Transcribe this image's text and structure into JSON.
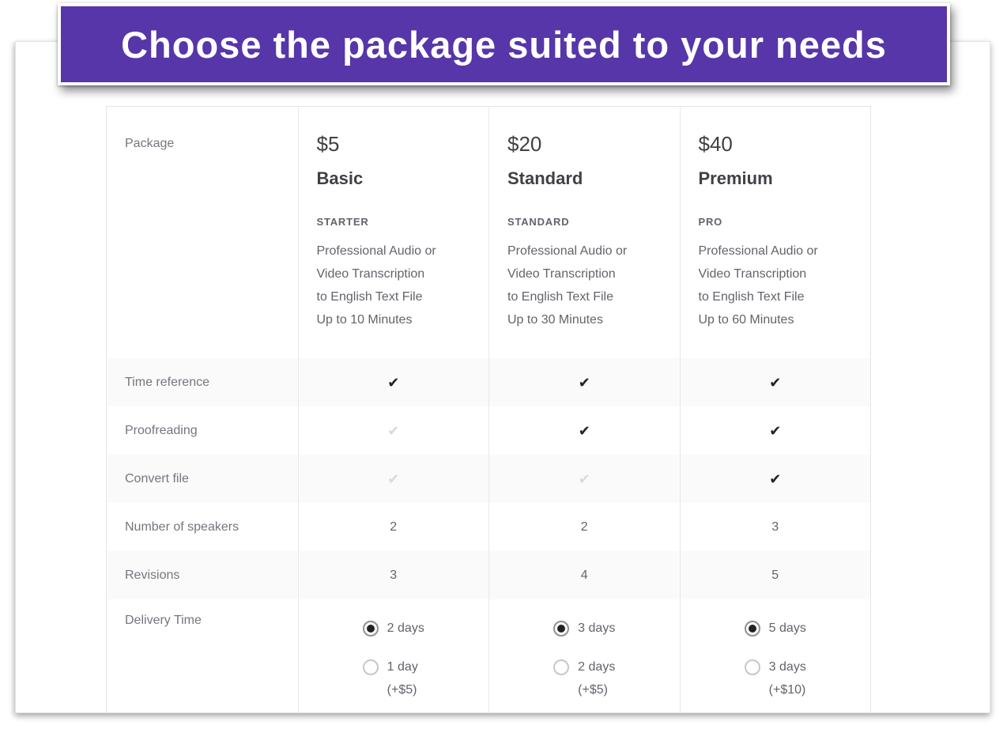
{
  "banner": {
    "title": "Choose the package suited to your needs",
    "background_color": "#5636a8",
    "text_color": "#ffffff"
  },
  "colors": {
    "check_included": "#222325",
    "check_excluded": "#d9dadd",
    "row_stripe": "#fafafa",
    "table_border": "#e4e5e7",
    "label_text": "#74767e",
    "value_text": "#62646a",
    "heading_text": "#404145"
  },
  "table": {
    "corner_label": "Package",
    "packages": [
      {
        "price": "$5",
        "name": "Basic",
        "tier": "STARTER",
        "description_lines": [
          "Professional Audio or",
          "Video Transcription",
          "to English Text File",
          "Up to 10 Minutes"
        ]
      },
      {
        "price": "$20",
        "name": "Standard",
        "tier": "STANDARD",
        "description_lines": [
          "Professional Audio or",
          "Video Transcription",
          "to English Text File",
          "Up to 30 Minutes"
        ]
      },
      {
        "price": "$40",
        "name": "Premium",
        "tier": "PRO",
        "description_lines": [
          "Professional Audio or",
          "Video Transcription",
          "to English Text File",
          "Up to 60 Minutes"
        ]
      }
    ],
    "feature_rows": [
      {
        "label": "Time reference",
        "type": "check",
        "included": [
          true,
          true,
          true
        ]
      },
      {
        "label": "Proofreading",
        "type": "check",
        "included": [
          false,
          true,
          true
        ]
      },
      {
        "label": "Convert file",
        "type": "check",
        "included": [
          false,
          false,
          true
        ]
      },
      {
        "label": "Number of speakers",
        "type": "values",
        "values": [
          "2",
          "2",
          "3"
        ]
      },
      {
        "label": "Revisions",
        "type": "values",
        "values": [
          "3",
          "4",
          "5"
        ]
      }
    ],
    "delivery_row": {
      "label": "Delivery Time",
      "options": [
        {
          "selected_label": "2 days",
          "alternative_label": "1 day",
          "alternative_surcharge": "(+$5)"
        },
        {
          "selected_label": "3 days",
          "alternative_label": "2 days",
          "alternative_surcharge": "(+$5)"
        },
        {
          "selected_label": "5 days",
          "alternative_label": "3 days",
          "alternative_surcharge": "(+$10)"
        }
      ]
    },
    "icons": {
      "check": "✔"
    }
  }
}
